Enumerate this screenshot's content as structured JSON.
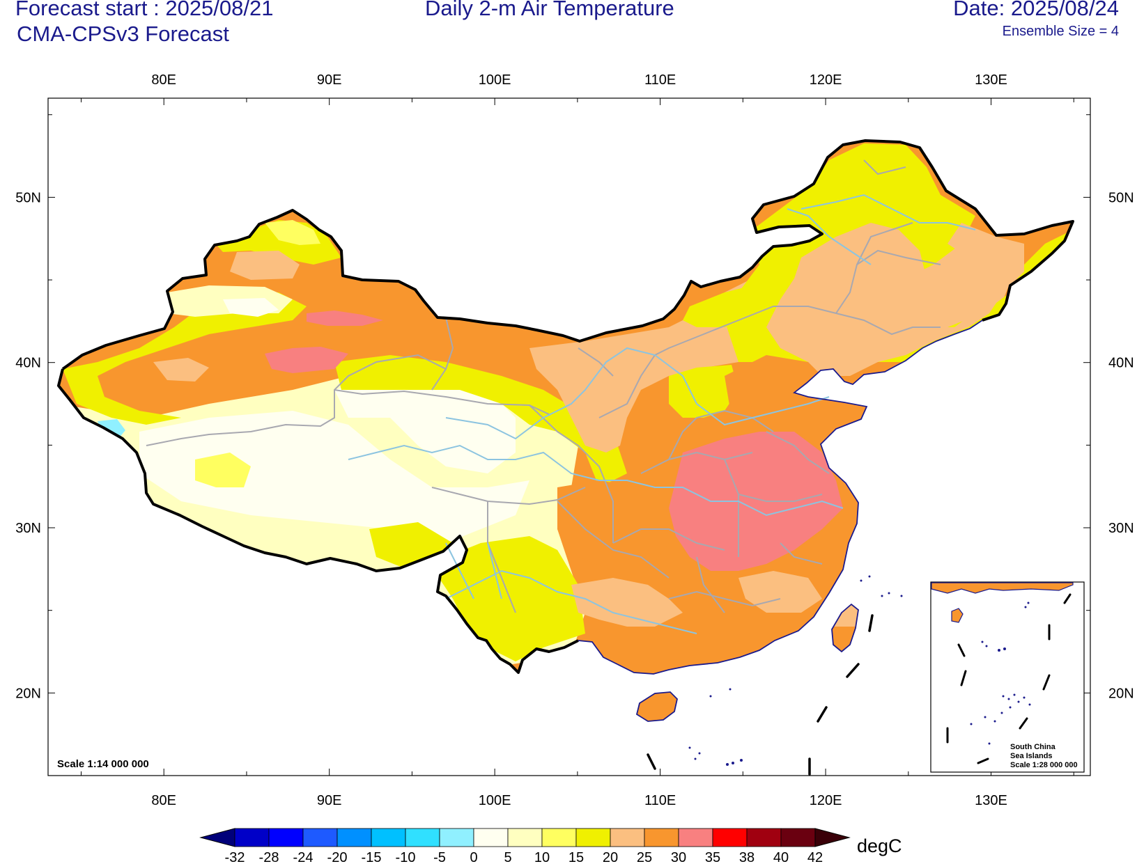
{
  "header": {
    "forecast_start": "Forecast start : 2025/08/21",
    "model": "CMA-CPSv3 Forecast",
    "title": "Daily 2-m Air Temperature",
    "date": "Date: 2025/08/24",
    "ensemble": "Ensemble Size = 4"
  },
  "map": {
    "lon_range": [
      73,
      136
    ],
    "lat_range": [
      15,
      56
    ],
    "lon_ticks": [
      80,
      90,
      100,
      110,
      120,
      130
    ],
    "lon_labels": [
      "80E",
      "90E",
      "100E",
      "110E",
      "120E",
      "130E"
    ],
    "lat_ticks": [
      20,
      30,
      40,
      50
    ],
    "lat_labels": [
      "20N",
      "30N",
      "40N",
      "50N"
    ],
    "scale_note": "Scale 1:14 000 000",
    "inset": {
      "title_line1": "South China",
      "title_line2": "Sea Islands",
      "scale": "Scale 1:28 000 000"
    }
  },
  "colorbar": {
    "unit": "degC",
    "labels": [
      "-32",
      "-28",
      "-24",
      "-20",
      "-15",
      "-10",
      "-5",
      "0",
      "5",
      "10",
      "15",
      "20",
      "25",
      "30",
      "35",
      "38",
      "40",
      "42"
    ],
    "colors": [
      "#00007a",
      "#0000c8",
      "#0000ff",
      "#1e5aff",
      "#0090ff",
      "#00c0ff",
      "#30e0ff",
      "#90f0ff",
      "#fffff0",
      "#ffffc0",
      "#ffff60",
      "#f0f000",
      "#fbbf80",
      "#f8962e",
      "#f88080",
      "#ff0000",
      "#a00010",
      "#6a0010",
      "#3a0008"
    ]
  },
  "temperature_colors": {
    "t5_10": "#fffff0",
    "t10_15": "#ffffc0",
    "t15_20": "#ffff60",
    "t20_25": "#f0f000",
    "t25_30": "#fbbf80",
    "t30_35": "#f8962e",
    "t35_38": "#f88080",
    "t0_5": "#90f0ff"
  }
}
